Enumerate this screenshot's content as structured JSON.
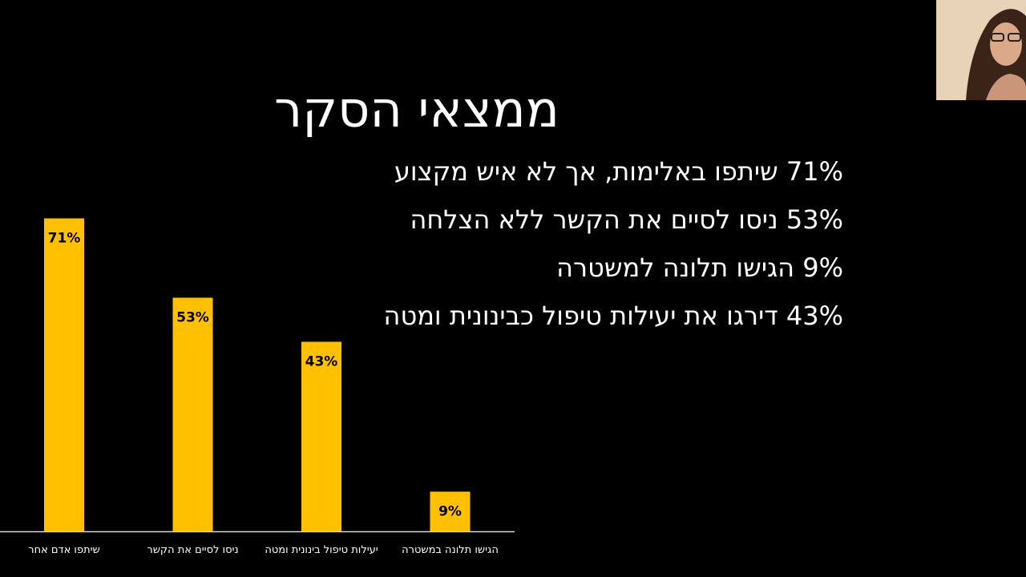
{
  "slide": {
    "title": "ממצאי הסקר",
    "bullets": [
      "71% שיתפו באלימות, אך לא איש מקצוע",
      "53% ניסו לסיים את הקשר ללא הצלחה",
      "9% הגישו תלונה למשטרה",
      "43% דירגו את יעילות טיפול כבינונית ומטה"
    ]
  },
  "chart_data": {
    "type": "bar",
    "categories": [
      "שיתפו אדם אחר",
      "ניסו לסיים את הקשר",
      "יעילות טיפול בינונית ומטה",
      "הגישו תלונה במשטרה"
    ],
    "values": [
      71,
      53,
      43,
      9
    ],
    "value_labels": [
      "71%",
      "53%",
      "43%",
      "9%"
    ],
    "color": "#ffc000"
  }
}
